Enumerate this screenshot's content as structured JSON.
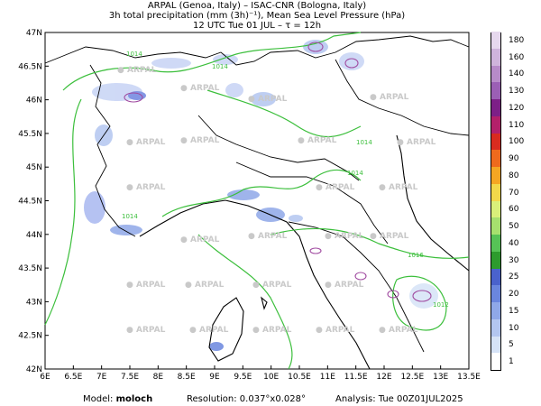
{
  "header": {
    "line1": "ARPAL (Genoa, Italy)  –  ISAC-CNR (Bologna, Italy)",
    "line2": "3h total precipitation (mm (3h)⁻¹), Mean Sea Level Pressure (hPa)",
    "line3": "12 UTC Tue 01 JUL  –  τ = 12h"
  },
  "map": {
    "lon_ticks": [
      "6E",
      "6.5E",
      "7E",
      "7.5E",
      "8E",
      "8.5E",
      "9E",
      "9.5E",
      "10E",
      "10.5E",
      "11E",
      "11.5E",
      "12E",
      "12.5E",
      "13E",
      "13.5E"
    ],
    "lat_ticks": [
      "47N",
      "46.5N",
      "46N",
      "45.5N",
      "45N",
      "44.5N",
      "44N",
      "43.5N",
      "43N",
      "42.5N",
      "42N"
    ],
    "watermark": "ARPAL",
    "isobar_labels": [
      "1014",
      "1014",
      "1014",
      "1014",
      "1014",
      "1016",
      "1012"
    ],
    "colors": {
      "land_border": "#000000",
      "isobar": "#3cbf3c",
      "light_precip": "#a9b8f0",
      "mid_precip": "#6f84e0",
      "high_precip": "#a04aa0"
    }
  },
  "colorbar": {
    "levels": [
      "1",
      "5",
      "10",
      "15",
      "20",
      "25",
      "30",
      "40",
      "50",
      "60",
      "70",
      "80",
      "90",
      "100",
      "110",
      "120",
      "130",
      "140",
      "160",
      "180"
    ],
    "colors": [
      "#ffffff",
      "#d6e3f7",
      "#b3c6f0",
      "#8fa8e8",
      "#6a86de",
      "#4a62cc",
      "#2d9b2d",
      "#56c256",
      "#a6e06e",
      "#d9f07a",
      "#f2d84a",
      "#f5a623",
      "#ee6a1d",
      "#d92b1f",
      "#b3206a",
      "#7d1f87",
      "#9b5fb5",
      "#b78bc9",
      "#cfb4dc",
      "#e6d8ee"
    ]
  },
  "footer": {
    "model_label": "Model:",
    "model_value": "moloch",
    "resolution": "Resolution: 0.037°x0.028°",
    "analysis": "Analysis: Tue 00Z01JUL2025"
  }
}
